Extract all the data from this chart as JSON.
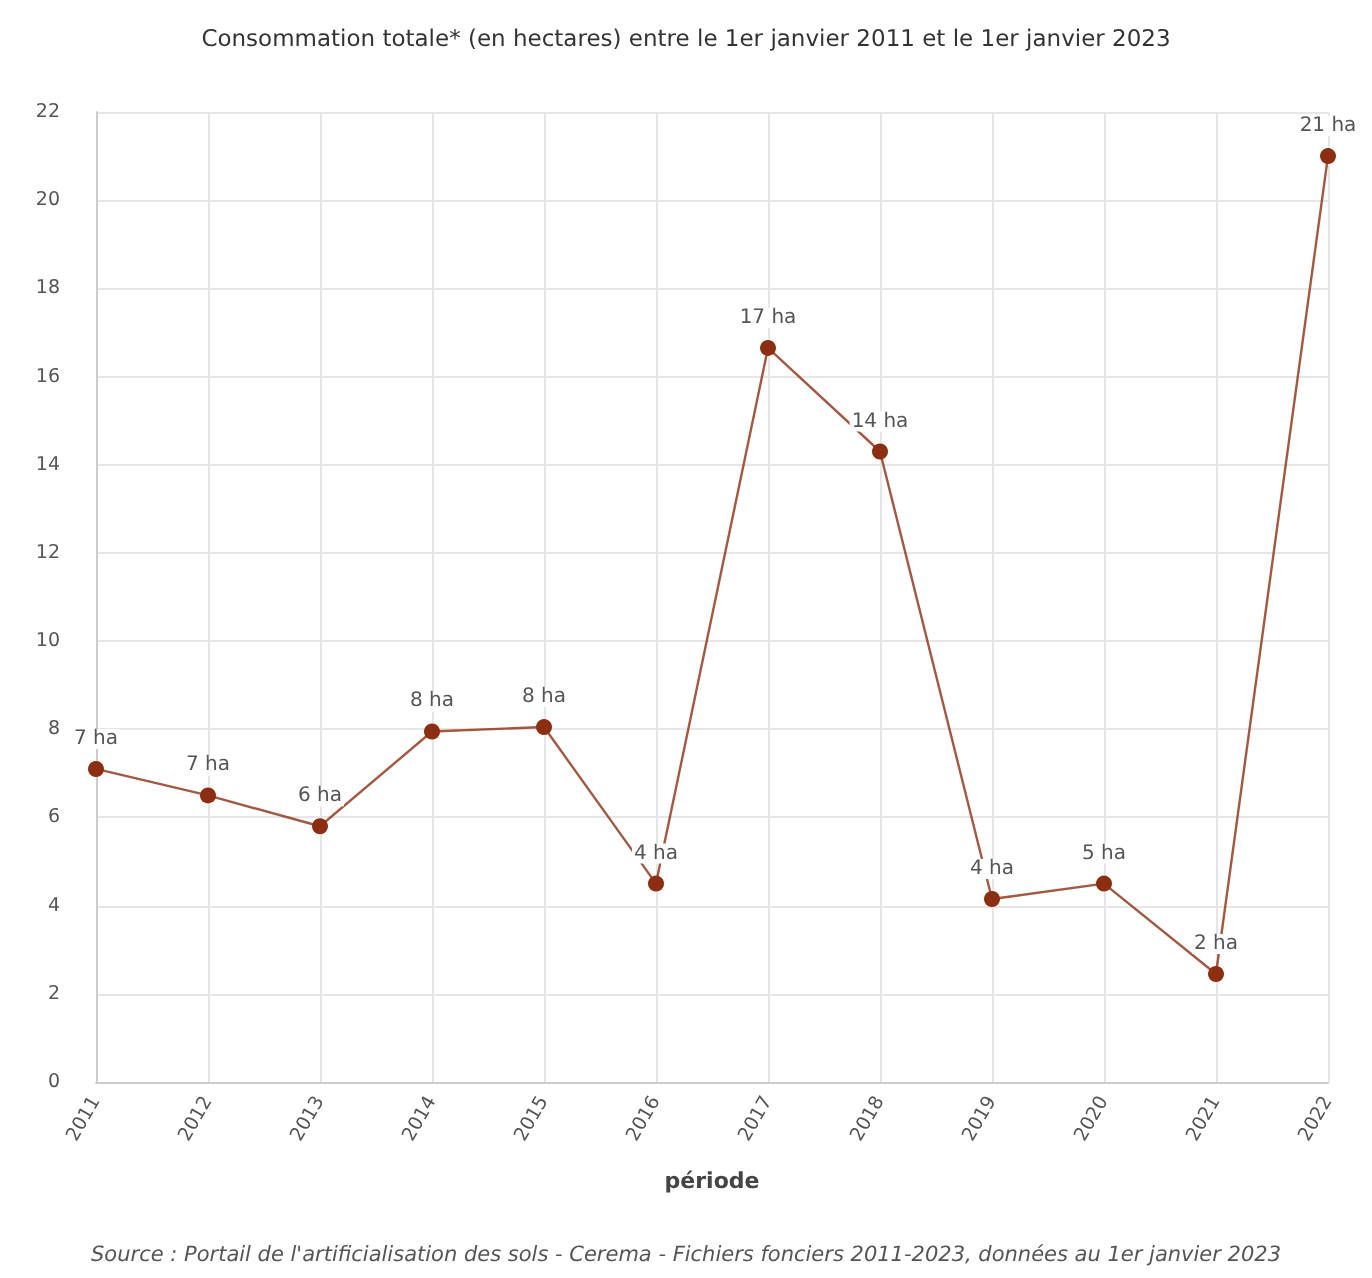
{
  "chart_data": {
    "type": "line",
    "title": "Consommation totale* (en hectares) entre le 1er janvier 2011 et le 1er janvier 2023",
    "xlabel": "période",
    "categories": [
      "2011",
      "2012",
      "2013",
      "2014",
      "2015",
      "2016",
      "2017",
      "2018",
      "2019",
      "2020",
      "2021",
      "2022"
    ],
    "series": [
      {
        "color": "#8b2e12",
        "values": [
          7.1,
          6.5,
          5.8,
          7.95,
          8.05,
          4.5,
          16.65,
          14.3,
          4.15,
          4.5,
          2.45,
          21.0
        ],
        "value_labels": [
          "7 ha",
          "7 ha",
          "6 ha",
          "8 ha",
          "8 ha",
          "4 ha",
          "17 ha",
          "14 ha",
          "4 ha",
          "5 ha",
          "2 ha",
          "21 ha"
        ]
      }
    ],
    "ylim": [
      0,
      22
    ],
    "yticks": [
      0,
      2,
      4,
      6,
      8,
      10,
      12,
      14,
      16,
      18,
      20,
      22
    ],
    "grid": true,
    "marker": "circle",
    "line_style": "solid",
    "annotations": [
      "Source : Portail de l'artificialisation des sols - Cerema - Fichiers fonciers 2011-2023, données au 1er janvier 2023"
    ]
  }
}
